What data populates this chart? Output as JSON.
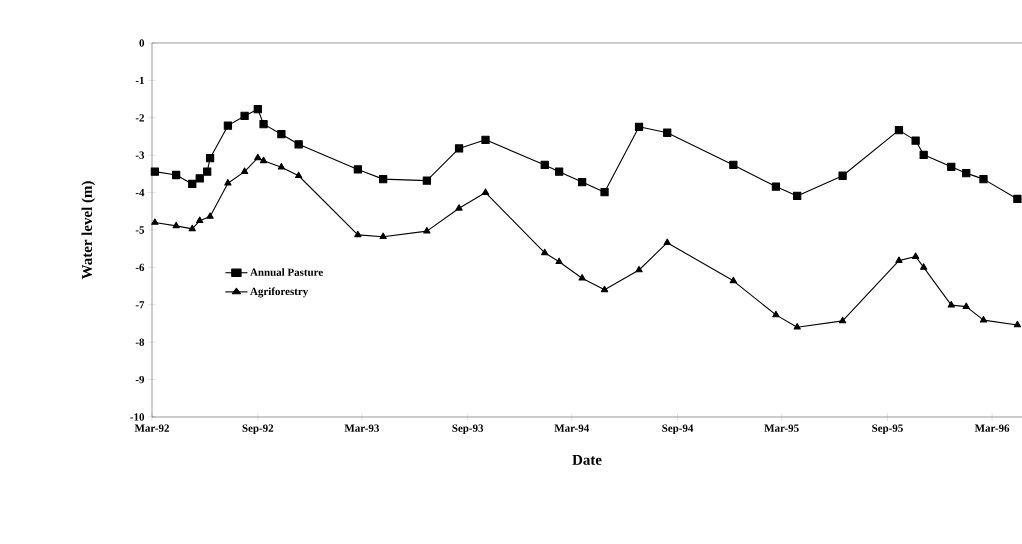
{
  "chart_data": {
    "type": "line",
    "xlabel": "Date",
    "ylabel": "Water level (m)",
    "xlim": [
      "1992-03-01",
      "1996-04-22"
    ],
    "ylim": [
      -10,
      0
    ],
    "xticks": [
      {
        "value": "1992-03-01",
        "label": "Mar-92"
      },
      {
        "value": "1992-09-01",
        "label": "Sep-92"
      },
      {
        "value": "1993-03-01",
        "label": "Mar-93"
      },
      {
        "value": "1993-09-01",
        "label": "Sep-93"
      },
      {
        "value": "1994-03-01",
        "label": "Mar-94"
      },
      {
        "value": "1994-09-01",
        "label": "Sep-94"
      },
      {
        "value": "1995-03-01",
        "label": "Mar-95"
      },
      {
        "value": "1995-09-01",
        "label": "Sep-95"
      },
      {
        "value": "1996-03-01",
        "label": "Mar-96"
      }
    ],
    "yticks": [
      0,
      -1,
      -2,
      -3,
      -4,
      -5,
      -6,
      -7,
      -8,
      -9,
      -10
    ],
    "legend": "center left",
    "grid": false,
    "line_style": "solid",
    "series": [
      {
        "name": "Annual Pasture",
        "color": "#000000",
        "marker": "square",
        "x": [
          "1992-03-06",
          "1992-04-12",
          "1992-05-10",
          "1992-05-23",
          "1992-06-05",
          "1992-06-10",
          "1992-07-11",
          "1992-08-09",
          "1992-09-01",
          "1992-09-11",
          "1992-10-12",
          "1992-11-11",
          "1993-02-22",
          "1993-04-07",
          "1993-06-22",
          "1993-08-17",
          "1993-10-02",
          "1994-01-13",
          "1994-02-07",
          "1994-03-19",
          "1994-04-27",
          "1994-06-26",
          "1994-08-14",
          "1994-12-07",
          "1995-02-19",
          "1995-03-28",
          "1995-06-15",
          "1995-09-21",
          "1995-10-20",
          "1995-11-03",
          "1995-12-21",
          "1996-01-16",
          "1996-02-15",
          "1996-04-14"
        ],
        "values": [
          -3.44,
          -3.53,
          -3.77,
          -3.62,
          -3.44,
          -3.08,
          -2.21,
          -1.95,
          -1.77,
          -2.17,
          -2.44,
          -2.71,
          -3.38,
          -3.64,
          -3.68,
          -2.82,
          -2.59,
          -3.26,
          -3.44,
          -3.72,
          -3.99,
          -2.24,
          -2.4,
          -3.26,
          -3.84,
          -4.09,
          -3.55,
          -2.33,
          -2.61,
          -2.99,
          -3.31,
          -3.48,
          -3.64,
          -4.17
        ]
      },
      {
        "name": "Agriforestry",
        "color": "#000000",
        "marker": "triangle",
        "x": [
          "1992-03-06",
          "1992-04-12",
          "1992-05-10",
          "1992-05-23",
          "1992-06-10",
          "1992-07-11",
          "1992-08-09",
          "1992-09-01",
          "1992-09-11",
          "1992-10-12",
          "1992-11-11",
          "1993-02-22",
          "1993-04-07",
          "1993-06-22",
          "1993-08-17",
          "1993-10-02",
          "1994-01-13",
          "1994-02-07",
          "1994-03-19",
          "1994-04-27",
          "1994-06-26",
          "1994-08-14",
          "1994-12-07",
          "1995-02-19",
          "1995-03-28",
          "1995-06-15",
          "1995-09-21",
          "1995-10-20",
          "1995-11-03",
          "1995-12-21",
          "1996-01-16",
          "1996-02-15",
          "1996-04-14"
        ],
        "values": [
          -4.8,
          -4.89,
          -4.97,
          -4.75,
          -4.64,
          -3.75,
          -3.44,
          -3.07,
          -3.15,
          -3.32,
          -3.55,
          -5.13,
          -5.18,
          -5.03,
          -4.42,
          -4.0,
          -5.61,
          -5.85,
          -6.29,
          -6.6,
          -6.07,
          -5.34,
          -6.36,
          -7.27,
          -7.6,
          -7.43,
          -5.82,
          -5.71,
          -6.0,
          -7.01,
          -7.05,
          -7.41,
          -7.54
        ]
      }
    ]
  }
}
